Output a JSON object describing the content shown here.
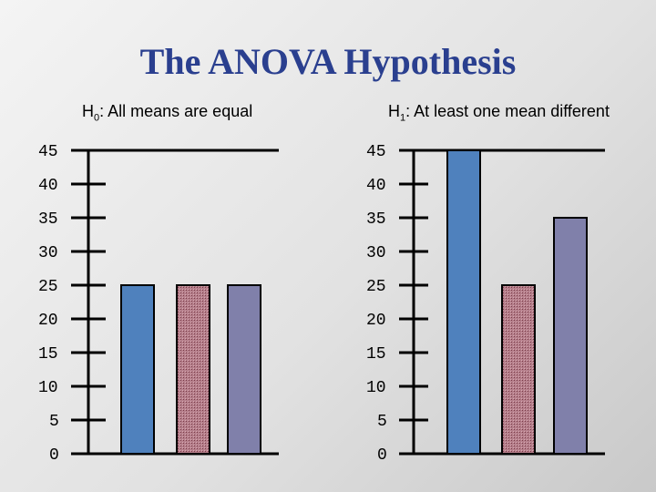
{
  "title": "The ANOVA Hypothesis",
  "colors": {
    "title": "#2a3f8f",
    "bar_blue": "#4f81bd",
    "bar_hatched": "#b07a86",
    "bar_purple": "#8080aa",
    "axis": "#000000"
  },
  "hypotheses": {
    "h0": {
      "symbol": "H",
      "sub": "0",
      "text": ": All means are equal"
    },
    "h1": {
      "symbol": "H",
      "sub": "1",
      "text": ": At least one mean different"
    }
  },
  "chart_data": [
    {
      "type": "bar",
      "title": "",
      "xlabel": "",
      "ylabel": "",
      "ylim": [
        0,
        45
      ],
      "yticks": [
        "0",
        "5",
        "10",
        "15",
        "20",
        "25",
        "30",
        "35",
        "40",
        "45"
      ],
      "categories": [
        "",
        "",
        ""
      ],
      "values": [
        25,
        25,
        25
      ],
      "bar_styles": [
        "blue",
        "hatched",
        "purple"
      ],
      "grid": false
    },
    {
      "type": "bar",
      "title": "",
      "xlabel": "",
      "ylabel": "",
      "ylim": [
        0,
        45
      ],
      "yticks": [
        "0",
        "5",
        "10",
        "15",
        "20",
        "25",
        "30",
        "35",
        "40",
        "45"
      ],
      "categories": [
        "",
        "",
        ""
      ],
      "values": [
        45,
        25,
        35
      ],
      "bar_styles": [
        "blue",
        "hatched",
        "purple"
      ],
      "grid": false
    }
  ]
}
